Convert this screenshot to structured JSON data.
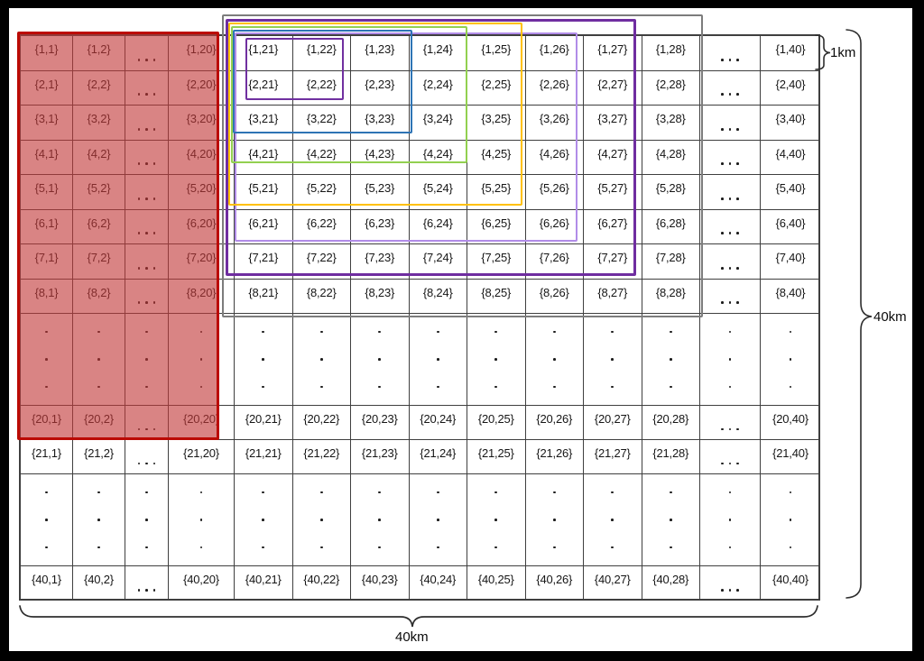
{
  "diagram": {
    "description": "40km x 40km area partitioned into a 40x40 grid of 1km cells with a highlighted 20x20 block and nested neighborhood rectangles",
    "area_labels": {
      "cell_height": "1km",
      "total_height": "40km",
      "total_width": "40km"
    },
    "grid": {
      "cell_label_format": "{R,C}",
      "row_indices": [
        1,
        2,
        3,
        4,
        5,
        6,
        7,
        8,
        null,
        20,
        21,
        null,
        40
      ],
      "col_indices": [
        1,
        2,
        null,
        20,
        21,
        22,
        23,
        24,
        25,
        26,
        27,
        28,
        null,
        40
      ],
      "ellipsis": "...",
      "line_color": "#3f3f3f",
      "text_color": "#161616"
    },
    "highlighted_region": {
      "name": "red-block",
      "row_start": 1,
      "row_end": 20,
      "col_start": 1,
      "col_end": 20,
      "fill": "#c13939",
      "fill_opacity": 0.62,
      "border_color": "#bb0a04"
    },
    "neighborhood_rings": [
      {
        "name": "ring-2",
        "row_start": 1,
        "row_end": 2,
        "col_start": 21,
        "col_end": 22,
        "color": "#7030a0",
        "thickness": 2.5
      },
      {
        "name": "ring-3",
        "row_start": 1,
        "row_end": 3,
        "col_start": 21,
        "col_end": 23,
        "color": "#2e74b5",
        "thickness": 2.5
      },
      {
        "name": "ring-4",
        "row_start": 1,
        "row_end": 4,
        "col_start": 21,
        "col_end": 24,
        "color": "#92d050",
        "thickness": 2.5
      },
      {
        "name": "ring-5",
        "row_start": 1,
        "row_end": 5,
        "col_start": 21,
        "col_end": 25,
        "color": "#ffc000",
        "thickness": 2.5
      },
      {
        "name": "ring-6",
        "row_start": 1,
        "row_end": 6,
        "col_start": 21,
        "col_end": 26,
        "color": "#b18ce8",
        "thickness": 2.5
      },
      {
        "name": "ring-7",
        "row_start": 1,
        "row_end": 7,
        "col_start": 21,
        "col_end": 27,
        "color": "#6f2da0",
        "thickness": 3
      },
      {
        "name": "ring-8",
        "row_start": 1,
        "row_end": 8,
        "col_start": 21,
        "col_end": 28,
        "color": "#7c7c7c",
        "thickness": 2
      }
    ]
  }
}
